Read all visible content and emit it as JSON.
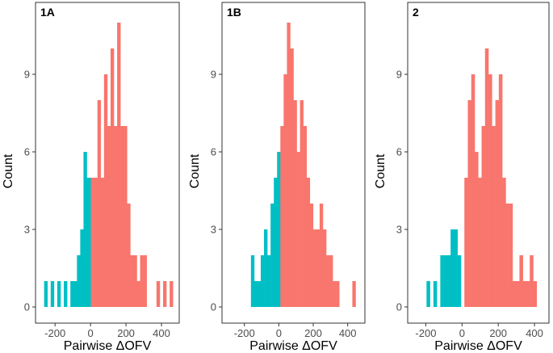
{
  "colors": {
    "negative": "#00BFC4",
    "positive": "#F8766D",
    "frame": "#333333",
    "tick": "#333333",
    "text": "#4d4d4d"
  },
  "chart_data": [
    {
      "type": "bar",
      "title": "1A",
      "xlabel": "Pairwise ΔOFV",
      "ylabel": "Count",
      "xlim": [
        -310,
        500
      ],
      "ylim": [
        0,
        11.5
      ],
      "xticks": [
        -200,
        0,
        200,
        400
      ],
      "xtick_labels": [
        "-200",
        "0",
        "200",
        "400"
      ],
      "yticks": [
        0,
        3,
        6,
        9
      ],
      "ytick_labels": [
        "0",
        "3",
        "6",
        "9"
      ],
      "bin_width": 18.5,
      "bins": [
        {
          "x0": -261.5,
          "count": 1,
          "group": "negative"
        },
        {
          "x0": -224.5,
          "count": 1,
          "group": "negative"
        },
        {
          "x0": -187.5,
          "count": 1,
          "group": "negative"
        },
        {
          "x0": -150.5,
          "count": 1,
          "group": "negative"
        },
        {
          "x0": -113.5,
          "count": 1,
          "group": "negative"
        },
        {
          "x0": -95.0,
          "count": 1,
          "group": "negative"
        },
        {
          "x0": -76.5,
          "count": 2,
          "group": "negative"
        },
        {
          "x0": -58.0,
          "count": 3,
          "group": "negative"
        },
        {
          "x0": -39.5,
          "count": 6,
          "group": "negative"
        },
        {
          "x0": -21.0,
          "count": 5,
          "group": "negative"
        },
        {
          "x0": -2.5,
          "count": 5,
          "group": "negative"
        },
        {
          "x0": 2.0,
          "count": 5,
          "group": "positive"
        },
        {
          "x0": 20.5,
          "count": 5,
          "group": "positive"
        },
        {
          "x0": 39.0,
          "count": 8,
          "group": "positive"
        },
        {
          "x0": 57.5,
          "count": 5,
          "group": "positive"
        },
        {
          "x0": 76.0,
          "count": 9,
          "group": "positive"
        },
        {
          "x0": 94.5,
          "count": 7,
          "group": "positive"
        },
        {
          "x0": 113.0,
          "count": 10,
          "group": "positive"
        },
        {
          "x0": 131.5,
          "count": 7,
          "group": "positive"
        },
        {
          "x0": 150.0,
          "count": 11,
          "group": "positive"
        },
        {
          "x0": 168.5,
          "count": 7,
          "group": "positive"
        },
        {
          "x0": 187.0,
          "count": 7,
          "group": "positive"
        },
        {
          "x0": 205.5,
          "count": 4,
          "group": "positive"
        },
        {
          "x0": 224.0,
          "count": 2,
          "group": "positive"
        },
        {
          "x0": 242.5,
          "count": 2,
          "group": "positive"
        },
        {
          "x0": 261.0,
          "count": 1,
          "group": "positive"
        },
        {
          "x0": 279.5,
          "count": 2,
          "group": "positive"
        },
        {
          "x0": 298.0,
          "count": 2,
          "group": "positive"
        },
        {
          "x0": 372.0,
          "count": 1,
          "group": "positive"
        },
        {
          "x0": 409.0,
          "count": 1,
          "group": "positive"
        },
        {
          "x0": 446.0,
          "count": 1,
          "group": "positive"
        }
      ]
    },
    {
      "type": "bar",
      "title": "1B",
      "xlabel": "Pairwise ΔOFV",
      "ylabel": "Count",
      "xlim": [
        -330,
        500
      ],
      "ylim": [
        0,
        11.5
      ],
      "xticks": [
        -200,
        0,
        200,
        400
      ],
      "xtick_labels": [
        "-200",
        "0",
        "200",
        "400"
      ],
      "yticks": [
        0,
        3,
        6,
        9
      ],
      "ytick_labels": [
        "0",
        "3",
        "6",
        "9"
      ],
      "bin_width": 19,
      "bins": [
        {
          "x0": -162,
          "count": 2,
          "group": "negative"
        },
        {
          "x0": -143,
          "count": 1,
          "group": "negative"
        },
        {
          "x0": -124,
          "count": 1,
          "group": "negative"
        },
        {
          "x0": -105,
          "count": 2,
          "group": "negative"
        },
        {
          "x0": -86,
          "count": 3,
          "group": "negative"
        },
        {
          "x0": -67,
          "count": 2,
          "group": "negative"
        },
        {
          "x0": -48,
          "count": 4,
          "group": "negative"
        },
        {
          "x0": -29,
          "count": 5,
          "group": "negative"
        },
        {
          "x0": -10,
          "count": 6,
          "group": "negative"
        },
        {
          "x0": 9,
          "count": 7,
          "group": "positive"
        },
        {
          "x0": 28,
          "count": 9,
          "group": "positive"
        },
        {
          "x0": 47,
          "count": 11,
          "group": "positive"
        },
        {
          "x0": 66,
          "count": 10,
          "group": "positive"
        },
        {
          "x0": 85,
          "count": 8,
          "group": "positive"
        },
        {
          "x0": 104,
          "count": 6,
          "group": "positive"
        },
        {
          "x0": 123,
          "count": 8,
          "group": "positive"
        },
        {
          "x0": 142,
          "count": 7,
          "group": "positive"
        },
        {
          "x0": 161,
          "count": 5,
          "group": "positive"
        },
        {
          "x0": 180,
          "count": 4,
          "group": "positive"
        },
        {
          "x0": 199,
          "count": 3,
          "group": "positive"
        },
        {
          "x0": 218,
          "count": 3,
          "group": "positive"
        },
        {
          "x0": 237,
          "count": 4,
          "group": "positive"
        },
        {
          "x0": 256,
          "count": 3,
          "group": "positive"
        },
        {
          "x0": 275,
          "count": 2,
          "group": "positive"
        },
        {
          "x0": 294,
          "count": 2,
          "group": "positive"
        },
        {
          "x0": 313,
          "count": 1,
          "group": "positive"
        },
        {
          "x0": 332,
          "count": 1,
          "group": "positive"
        },
        {
          "x0": 427,
          "count": 1,
          "group": "positive"
        }
      ]
    },
    {
      "type": "bar",
      "title": "2",
      "xlabel": "Pairwise ΔOFV",
      "ylabel": "Count",
      "xlim": [
        -300,
        480
      ],
      "ylim": [
        0,
        11.5
      ],
      "xticks": [
        -200,
        0,
        200,
        400
      ],
      "xtick_labels": [
        "-200",
        "0",
        "200",
        "400"
      ],
      "yticks": [
        0,
        3,
        6,
        9
      ],
      "ytick_labels": [
        "0",
        "3",
        "6",
        "9"
      ],
      "bin_width": 19,
      "bins": [
        {
          "x0": -196,
          "count": 1,
          "group": "negative"
        },
        {
          "x0": -158,
          "count": 1,
          "group": "negative"
        },
        {
          "x0": -120,
          "count": 2,
          "group": "negative"
        },
        {
          "x0": -101,
          "count": 2,
          "group": "negative"
        },
        {
          "x0": -82,
          "count": 2,
          "group": "negative"
        },
        {
          "x0": -63,
          "count": 3,
          "group": "negative"
        },
        {
          "x0": -44,
          "count": 3,
          "group": "negative"
        },
        {
          "x0": -25,
          "count": 2,
          "group": "negative"
        },
        {
          "x0": 13,
          "count": 5,
          "group": "positive"
        },
        {
          "x0": 32,
          "count": 8,
          "group": "positive"
        },
        {
          "x0": 51,
          "count": 9,
          "group": "positive"
        },
        {
          "x0": 70,
          "count": 6,
          "group": "positive"
        },
        {
          "x0": 89,
          "count": 5,
          "group": "positive"
        },
        {
          "x0": 108,
          "count": 7,
          "group": "positive"
        },
        {
          "x0": 127,
          "count": 10,
          "group": "positive"
        },
        {
          "x0": 146,
          "count": 9,
          "group": "positive"
        },
        {
          "x0": 165,
          "count": 7,
          "group": "positive"
        },
        {
          "x0": 184,
          "count": 8,
          "group": "positive"
        },
        {
          "x0": 203,
          "count": 9,
          "group": "positive"
        },
        {
          "x0": 222,
          "count": 5,
          "group": "positive"
        },
        {
          "x0": 241,
          "count": 4,
          "group": "positive"
        },
        {
          "x0": 260,
          "count": 4,
          "group": "positive"
        },
        {
          "x0": 279,
          "count": 1,
          "group": "positive"
        },
        {
          "x0": 298,
          "count": 1,
          "group": "positive"
        },
        {
          "x0": 317,
          "count": 2,
          "group": "positive"
        },
        {
          "x0": 336,
          "count": 1,
          "group": "positive"
        },
        {
          "x0": 355,
          "count": 1,
          "group": "positive"
        },
        {
          "x0": 374,
          "count": 2,
          "group": "positive"
        },
        {
          "x0": 393,
          "count": 1,
          "group": "positive"
        }
      ]
    }
  ]
}
